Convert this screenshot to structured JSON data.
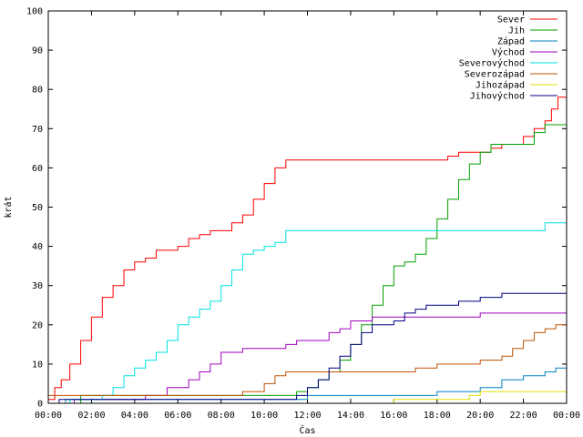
{
  "chart_data": {
    "type": "line",
    "xlabel": "Čas",
    "ylabel": "krát",
    "xlim": [
      "00:00",
      "24:00"
    ],
    "ylim": [
      0,
      100
    ],
    "grid": false,
    "legend_position": "top-right",
    "x_ticks": [
      "00:00",
      "02:00",
      "04:00",
      "06:00",
      "08:00",
      "10:00",
      "12:00",
      "14:00",
      "16:00",
      "18:00",
      "20:00",
      "22:00",
      "00:00"
    ],
    "y_ticks": [
      "0",
      "10",
      "20",
      "30",
      "40",
      "50",
      "60",
      "70",
      "80",
      "90",
      "100"
    ],
    "series": [
      {
        "name": "Sever",
        "color": "#ff0000",
        "x": [
          0,
          0.3,
          0.6,
          1.0,
          1.5,
          2.0,
          2.5,
          3.0,
          3.5,
          4.0,
          4.5,
          5.0,
          5.5,
          6.0,
          6.5,
          7.0,
          7.5,
          8.0,
          8.5,
          9.0,
          9.5,
          10.0,
          10.5,
          11.0,
          12.0,
          16.0,
          17.0,
          18.0,
          18.5,
          19.0,
          20.0,
          20.5,
          21.0,
          22.0,
          22.5,
          23.0,
          23.3,
          23.6,
          24.0
        ],
        "y": [
          1,
          4,
          6,
          10,
          16,
          22,
          27,
          30,
          34,
          36,
          37,
          39,
          39,
          40,
          42,
          43,
          44,
          44,
          46,
          48,
          52,
          56,
          60,
          62,
          62,
          62,
          62,
          62,
          63,
          64,
          64,
          65,
          66,
          68,
          70,
          72,
          75,
          78,
          78
        ]
      },
      {
        "name": "Jih",
        "color": "#00a000",
        "x": [
          0,
          1.5,
          5,
          8,
          10.5,
          11.5,
          12.0,
          12.5,
          13.0,
          13.5,
          14.0,
          14.5,
          15.0,
          15.5,
          16.0,
          16.5,
          17.0,
          17.5,
          18.0,
          18.5,
          19.0,
          19.5,
          20.0,
          20.5,
          21.0,
          22.0,
          22.5,
          23.0,
          23.5,
          24.0
        ],
        "y": [
          0,
          2,
          2,
          2,
          2,
          3,
          4,
          6,
          8,
          11,
          15,
          20,
          25,
          30,
          35,
          36,
          38,
          42,
          47,
          52,
          57,
          61,
          64,
          66,
          66,
          66,
          69,
          71,
          71,
          73
        ]
      },
      {
        "name": "Západ",
        "color": "#0080c0",
        "x": [
          0,
          0.8,
          2,
          4,
          6,
          8,
          10,
          12,
          14,
          16,
          18,
          19,
          20,
          21,
          22,
          23,
          23.5,
          24
        ],
        "y": [
          0,
          1,
          1,
          1,
          1,
          1,
          1,
          2,
          2,
          2,
          3,
          3,
          4,
          6,
          7,
          8,
          9,
          10
        ]
      },
      {
        "name": "Východ",
        "color": "#a000c0",
        "x": [
          0,
          1.2,
          4,
          4.5,
          5.5,
          6.5,
          7.0,
          7.5,
          8.0,
          9.0,
          10.0,
          11.0,
          11.5,
          12.0,
          13.0,
          13.5,
          14.0,
          15.0,
          16.0,
          18.0,
          20.0,
          22.0,
          24.0
        ],
        "y": [
          0,
          1,
          1,
          2,
          4,
          6,
          8,
          10,
          13,
          14,
          14,
          15,
          16,
          16,
          18,
          19,
          21,
          22,
          22,
          22,
          23,
          23,
          23
        ]
      },
      {
        "name": "Severovýchod",
        "color": "#00e0e0",
        "x": [
          0,
          1.0,
          2.0,
          2.5,
          3.0,
          3.5,
          4.0,
          4.5,
          5.0,
          5.5,
          6.0,
          6.5,
          7.0,
          7.5,
          8.0,
          8.5,
          9.0,
          9.5,
          10.0,
          10.5,
          11.0,
          12.0,
          14.0,
          16.0,
          18.0,
          20.0,
          22.0,
          23.0,
          24.0
        ],
        "y": [
          0,
          1,
          1,
          2,
          4,
          7,
          9,
          11,
          13,
          16,
          20,
          22,
          24,
          26,
          30,
          34,
          38,
          39,
          40,
          41,
          44,
          44,
          44,
          44,
          44,
          44,
          44,
          46,
          47
        ]
      },
      {
        "name": "Severozápad",
        "color": "#c05000",
        "x": [
          0,
          2,
          4,
          6,
          8,
          9,
          10,
          10.5,
          11,
          12,
          14,
          16,
          17,
          18,
          19,
          20,
          21,
          21.5,
          22,
          22.5,
          23.0,
          23.5,
          24.0
        ],
        "y": [
          2,
          2,
          2,
          2,
          2,
          3,
          5,
          7,
          8,
          8,
          8,
          8,
          9,
          10,
          10,
          11,
          12,
          14,
          16,
          18,
          19,
          20,
          21
        ]
      },
      {
        "name": "Jihozápad",
        "color": "#e0e000",
        "x": [
          0,
          15.5,
          16.0,
          18.0,
          19.0,
          19.5,
          20.0,
          22.0,
          23.0,
          24.0
        ],
        "y": [
          0,
          0,
          1,
          1,
          1,
          2,
          3,
          3,
          3,
          3
        ]
      },
      {
        "name": "Jihovýchod",
        "color": "#000080",
        "x": [
          0,
          0.5,
          2,
          4,
          6,
          8,
          10,
          11,
          11.5,
          12.0,
          12.5,
          13.0,
          13.5,
          14.0,
          14.5,
          15.0,
          16.0,
          16.5,
          17.0,
          17.5,
          18.0,
          19.0,
          20.0,
          21.0,
          22.0,
          23.0,
          23.5,
          24.0
        ],
        "y": [
          0,
          1,
          1,
          1,
          1,
          1,
          1,
          1,
          2,
          4,
          6,
          9,
          12,
          15,
          18,
          20,
          21,
          23,
          24,
          25,
          25,
          26,
          27,
          28,
          28,
          28,
          28,
          30
        ]
      }
    ]
  }
}
